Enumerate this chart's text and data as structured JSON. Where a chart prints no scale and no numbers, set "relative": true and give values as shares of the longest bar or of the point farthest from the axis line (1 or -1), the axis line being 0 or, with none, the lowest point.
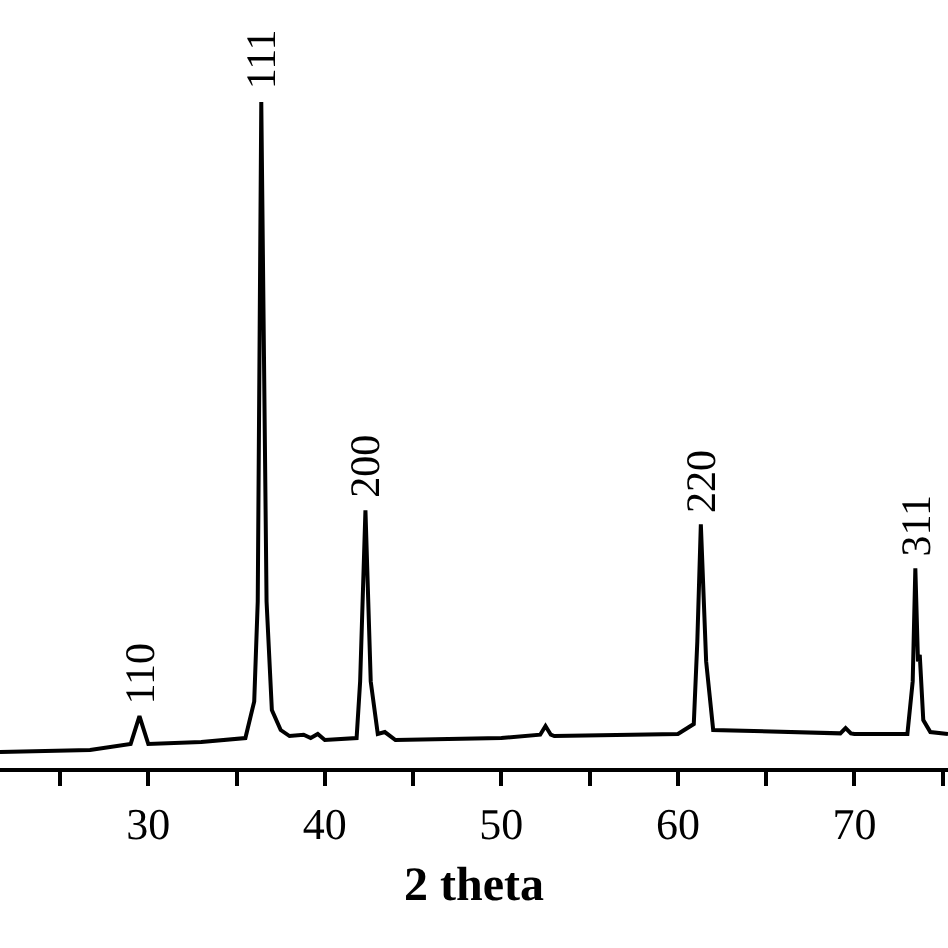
{
  "chart_data": {
    "type": "line",
    "xlabel": "2 theta",
    "relative": true,
    "color": "#000000",
    "x": [
      21.6,
      26.7,
      29.0,
      29.5,
      30.0,
      33.0,
      35.5,
      36.0,
      36.2,
      36.4,
      36.7,
      37.0,
      37.5,
      38.0,
      38.8,
      39.2,
      39.6,
      40.0,
      41.8,
      42.0,
      42.3,
      42.6,
      43.0,
      43.4,
      44.0,
      50.0,
      52.2,
      52.5,
      52.8,
      53.0,
      60.0,
      60.9,
      61.1,
      61.3,
      61.6,
      62.0,
      69.2,
      69.5,
      69.8,
      70.0,
      73.0,
      73.3,
      73.45,
      73.6,
      73.7,
      73.9,
      74.3,
      75.3
    ],
    "values": [
      0.024,
      0.027,
      0.036,
      0.078,
      0.036,
      0.039,
      0.045,
      0.1,
      0.25,
      1.0,
      0.25,
      0.087,
      0.057,
      0.048,
      0.05,
      0.045,
      0.051,
      0.042,
      0.045,
      0.13,
      0.387,
      0.13,
      0.051,
      0.054,
      0.042,
      0.045,
      0.05,
      0.063,
      0.05,
      0.048,
      0.051,
      0.066,
      0.19,
      0.366,
      0.16,
      0.057,
      0.052,
      0.06,
      0.052,
      0.051,
      0.051,
      0.13,
      0.3,
      0.16,
      0.17,
      0.072,
      0.054,
      0.051
    ],
    "xlim": [
      21.6,
      75.3
    ],
    "xticks": [
      {
        "value": 25,
        "label": null
      },
      30,
      {
        "value": 35,
        "label": null
      },
      40,
      {
        "value": 45,
        "label": null
      },
      50,
      {
        "value": 55,
        "label": null
      },
      60,
      {
        "value": 65,
        "label": null
      },
      70,
      {
        "value": 75,
        "label": null
      }
    ],
    "annotations": [
      {
        "text": "110",
        "x": 29.5,
        "y": 0.078
      },
      {
        "text": "111",
        "x": 36.4,
        "y": 1.0
      },
      {
        "text": "200",
        "x": 42.3,
        "y": 0.387
      },
      {
        "text": "220",
        "x": 61.3,
        "y": 0.366
      },
      {
        "text": "311",
        "x": 73.45,
        "y": 0.3
      }
    ]
  }
}
